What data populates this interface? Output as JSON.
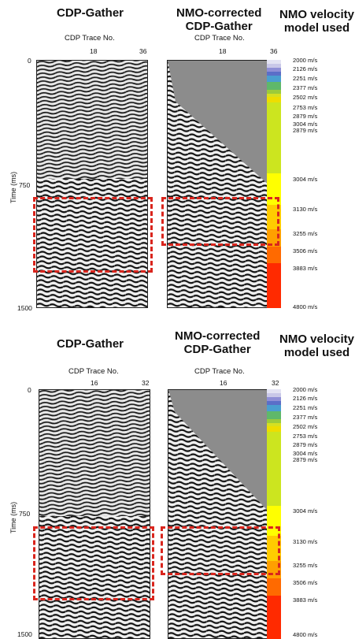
{
  "panel1": {
    "title_left": "CDP-Gather",
    "title_mid": [
      "NMO-corrected",
      "CDP-Gather"
    ],
    "title_right": [
      "NMO velocity",
      "model used"
    ],
    "x_label": "CDP Trace No.",
    "x_ticks": [
      "18",
      "36"
    ],
    "y_ticks": [
      "0",
      "750",
      "1500"
    ],
    "y_label": "Time (ms)",
    "velocities": [
      "2000 m/s",
      "2126 m/s",
      "2251 m/s",
      "2377 m/s",
      "2502 m/s",
      "2753 m/s",
      "2879 m/s",
      "3004 m/s",
      "2879 m/s",
      "3004 m/s",
      "3130 m/s",
      "3255 m/s",
      "3506 m/s",
      "3883 m/s",
      "4800 m/s"
    ]
  },
  "panel2": {
    "title_left": "CDP-Gather",
    "title_mid": [
      "NMO-corrected",
      "CDP-Gather"
    ],
    "title_right": [
      "NMO velocity",
      "model used"
    ],
    "x_label": "CDP Trace No.",
    "x_ticks": [
      "16",
      "32"
    ],
    "y_ticks": [
      "0",
      "750",
      "1500"
    ],
    "y_label": "Time (ms)",
    "velocities": [
      "2000 m/s",
      "2126 m/s",
      "2251 m/s",
      "2377 m/s",
      "2502 m/s",
      "2753 m/s",
      "2879 m/s",
      "3004 m/s",
      "2879 m/s",
      "3004 m/s",
      "3130 m/s",
      "3255 m/s",
      "3506 m/s",
      "3883 m/s",
      "4800 m/s"
    ]
  },
  "colors": {
    "highlight_box": "#d9251d",
    "muted_zone": "#8c8c8c",
    "velocity_scale": [
      "#c9c8e8",
      "#8f8fd6",
      "#5b6ec8",
      "#4a9ed0",
      "#5fb86a",
      "#9ccb3a",
      "#d6e021",
      "#ffff00",
      "#ffcc00",
      "#ffa000",
      "#ff6a00",
      "#ff2a00"
    ]
  }
}
